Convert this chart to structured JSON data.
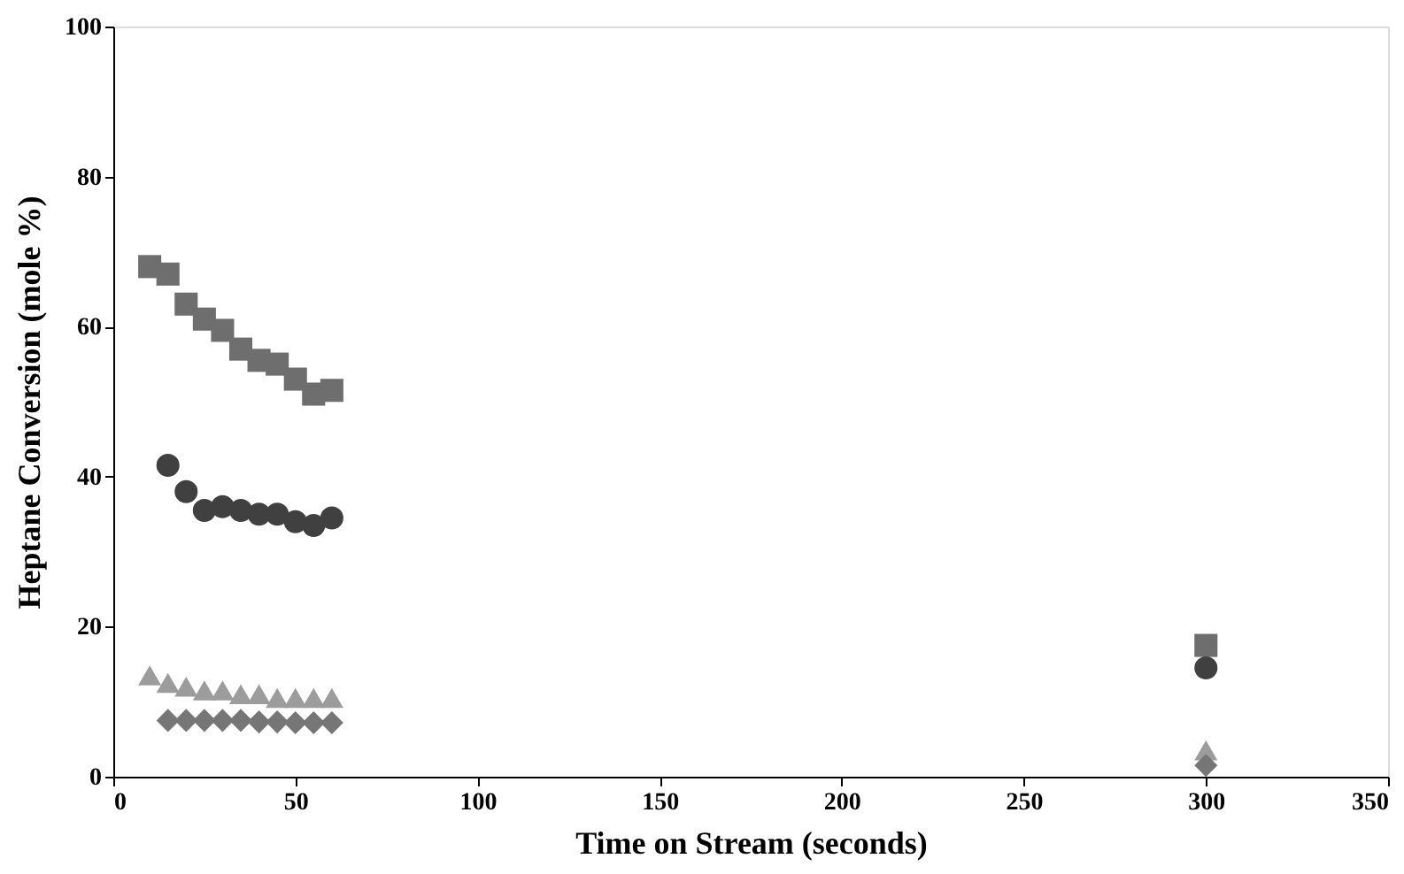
{
  "chart_data": {
    "type": "scatter",
    "xlabel": "Time on Stream (seconds)",
    "ylabel": "Heptane Conversion (mole %)",
    "xlim": [
      0,
      350
    ],
    "xticks": [
      0,
      50,
      100,
      150,
      200,
      250,
      300,
      350
    ],
    "ylim": [
      0,
      100
    ],
    "yticks": [
      0,
      20,
      40,
      60,
      80,
      100
    ],
    "grid": false,
    "legend": false,
    "series": [
      {
        "color": "#6e6e6e",
        "marker": "square",
        "x": [
          10,
          15,
          20,
          25,
          30,
          35,
          40,
          45,
          50,
          55,
          60,
          300
        ],
        "values": [
          68,
          67,
          63,
          61,
          59.5,
          57,
          55.5,
          55,
          53,
          51,
          51.5,
          17.5
        ]
      },
      {
        "color": "#404040",
        "marker": "circle",
        "x": [
          15,
          20,
          25,
          30,
          35,
          40,
          45,
          50,
          55,
          60,
          300
        ],
        "values": [
          41.5,
          38,
          35.5,
          36,
          35.5,
          35,
          35,
          34,
          33.5,
          34.5,
          14.5
        ]
      },
      {
        "color": "#9c9c9c",
        "marker": "triangle",
        "x": [
          10,
          15,
          20,
          25,
          30,
          35,
          40,
          45,
          50,
          55,
          60,
          300
        ],
        "values": [
          13.5,
          12.5,
          12,
          11.5,
          11.5,
          11,
          11,
          10.5,
          10.5,
          10.5,
          10.5,
          3.5
        ]
      },
      {
        "color": "#767676",
        "marker": "diamond",
        "x": [
          15,
          20,
          25,
          30,
          35,
          40,
          45,
          50,
          55,
          60,
          300
        ],
        "values": [
          7.5,
          7.5,
          7.5,
          7.5,
          7.5,
          7.3,
          7.3,
          7.2,
          7.2,
          7.2,
          1.5
        ]
      }
    ]
  }
}
